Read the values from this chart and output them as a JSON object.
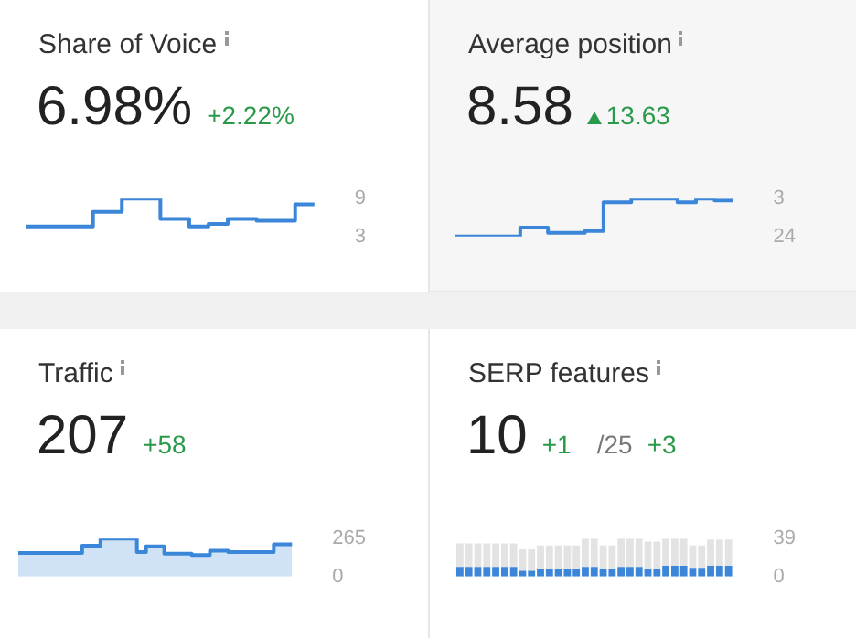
{
  "chart_data": [
    {
      "type": "step",
      "title": "Share of Voice",
      "annotations": [
        "6.98%",
        "+2.22%"
      ],
      "categories": [
        null,
        null,
        null,
        null,
        null,
        null,
        null,
        null,
        null,
        null,
        null,
        null,
        null,
        null,
        null,
        null,
        null,
        null,
        null,
        null,
        null,
        null,
        null,
        null,
        null,
        null,
        null,
        null,
        null,
        null,
        null
      ],
      "values": [
        4.6,
        4.6,
        4.6,
        4.6,
        4.6,
        4.6,
        4.6,
        6.9,
        6.9,
        6.9,
        9,
        9,
        9,
        9,
        5.8,
        5.8,
        5.8,
        4.6,
        4.6,
        5,
        5,
        5.8,
        5.8,
        5.8,
        5.5,
        5.5,
        5.5,
        5.5,
        8.1,
        8.1,
        8.1
      ],
      "color": "#3b86d8",
      "ylim": [
        3,
        9
      ],
      "yticks": [
        3,
        9
      ],
      "tick_labels": "y",
      "legend": false
    },
    {
      "type": "step",
      "title": "Average position",
      "annotations": [
        "8.58",
        "13.63"
      ],
      "categories": [
        null,
        null,
        null,
        null,
        null,
        null,
        null,
        null,
        null,
        null,
        null,
        null,
        null,
        null,
        null,
        null,
        null,
        null,
        null,
        null,
        null,
        null,
        null,
        null,
        null,
        null,
        null,
        null,
        null,
        null,
        null
      ],
      "values": [
        24,
        24,
        24,
        24,
        24,
        24,
        24,
        19,
        19,
        19,
        22,
        22,
        22,
        22,
        21,
        21,
        5,
        5,
        5,
        3,
        3,
        3,
        3,
        3,
        5,
        5,
        3,
        3,
        4,
        4,
        4
      ],
      "color": "#3b86d8",
      "ylim": [
        24,
        3
      ],
      "yticks": [
        3,
        24
      ],
      "tick_labels": "y",
      "legend": false
    },
    {
      "type": "area",
      "title": "Traffic",
      "annotations": [
        "207",
        "+58"
      ],
      "categories": [
        null,
        null,
        null,
        null,
        null,
        null,
        null,
        null,
        null,
        null,
        null,
        null,
        null,
        null,
        null,
        null,
        null,
        null,
        null,
        null,
        null,
        null,
        null,
        null,
        null,
        null,
        null,
        null,
        null,
        null,
        null
      ],
      "values": [
        165,
        165,
        165,
        165,
        165,
        165,
        165,
        215,
        215,
        265,
        265,
        265,
        265,
        170,
        210,
        210,
        160,
        160,
        160,
        150,
        150,
        180,
        180,
        170,
        170,
        170,
        170,
        170,
        225,
        225,
        225
      ],
      "color": "#3a87d9",
      "ylim": [
        0,
        265
      ],
      "yticks": [
        0,
        265
      ],
      "tick_labels": "y",
      "legend": false
    },
    {
      "type": "bar",
      "stacked": true,
      "title": "SERP features",
      "annotations": [
        "10",
        "+1",
        "/25",
        "+3"
      ],
      "categories": [
        null,
        null,
        null,
        null,
        null,
        null,
        null,
        null,
        null,
        null,
        null,
        null,
        null,
        null,
        null,
        null,
        null,
        null,
        null,
        null,
        null,
        null,
        null,
        null,
        null,
        null,
        null,
        null,
        null,
        null,
        null
      ],
      "series": [
        {
          "color": "#3b86d8",
          "values": [
            10,
            10,
            10,
            10,
            10,
            10,
            10,
            6,
            6,
            8,
            8,
            8,
            8,
            8,
            10,
            10,
            8,
            8,
            10,
            10,
            10,
            8,
            8,
            11,
            11,
            11,
            9,
            9,
            11,
            11,
            11
          ]
        },
        {
          "color": "#e3e3e3",
          "values": [
            24,
            24,
            24,
            24,
            24,
            24,
            24,
            22,
            22,
            24,
            24,
            24,
            24,
            24,
            29,
            29,
            24,
            24,
            29,
            29,
            29,
            28,
            28,
            28,
            28,
            28,
            23,
            23,
            27,
            27,
            27
          ]
        }
      ],
      "ylim": [
        0,
        39
      ],
      "yticks": [
        0,
        39
      ],
      "tick_labels": "y",
      "legend": false
    }
  ]
}
